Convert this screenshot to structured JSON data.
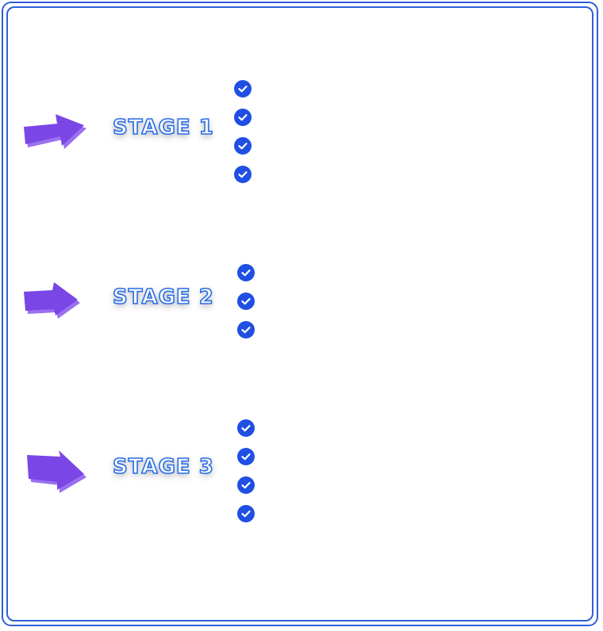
{
  "colors": {
    "frame": "#2f5fd8",
    "arrow_top": "#7a46e6",
    "arrow_side": "#9a70f0",
    "title_stroke": "#2a6ee8",
    "check_fill": "#1f4fe3"
  },
  "stages": [
    {
      "title": "STAGE 1",
      "icon": "arrow-right-icon",
      "checks": 4
    },
    {
      "title": "STAGE 2",
      "icon": "arrow-right-icon",
      "checks": 3
    },
    {
      "title": "STAGE 3",
      "icon": "arrow-right-icon",
      "checks": 4
    }
  ]
}
